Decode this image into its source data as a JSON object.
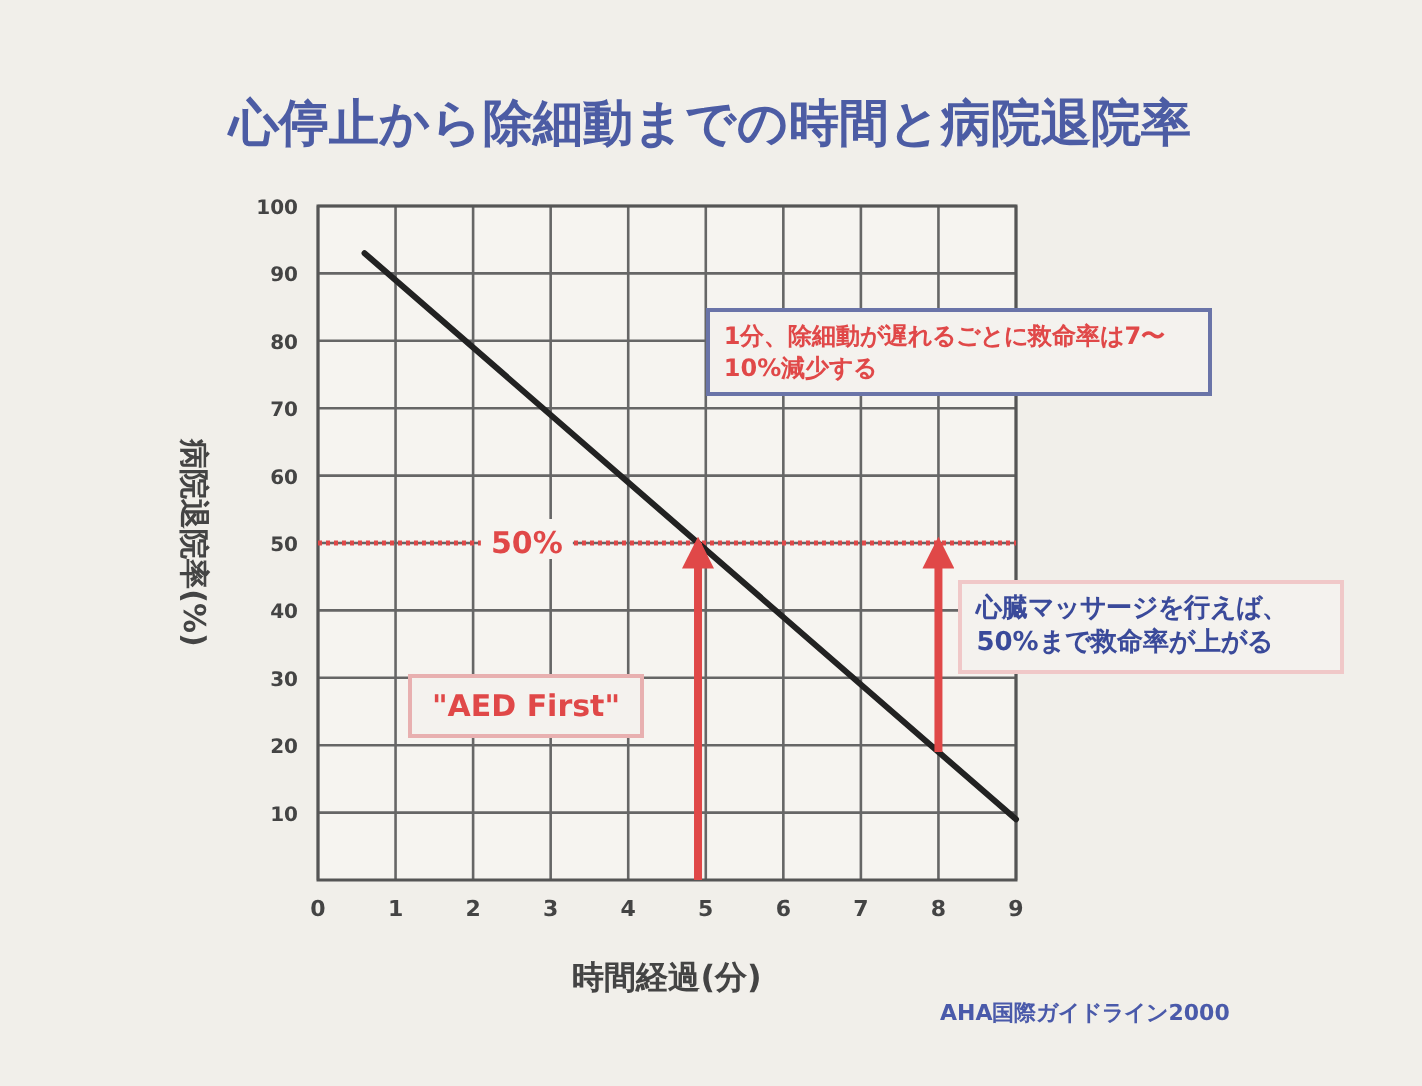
{
  "chart_data": {
    "type": "line",
    "title": "心停止から除細動までの時間と病院退院率",
    "xlabel": "時間経過(分)",
    "ylabel": "病院退院率(%)",
    "series": [
      {
        "color": "#222222",
        "x": [
          0.6,
          9
        ],
        "values": [
          93,
          9
        ]
      },
      {
        "color": "#e04848",
        "x": [
          4.9,
          4.9
        ],
        "values": [
          0,
          50
        ]
      },
      {
        "color": "#e04848",
        "x": [
          8,
          8
        ],
        "values": [
          19,
          50
        ]
      }
    ],
    "xlim": [
      0,
      9
    ],
    "xticks": [
      0,
      1,
      2,
      3,
      4,
      5,
      6,
      7,
      8,
      9
    ],
    "ylim": [
      0,
      100
    ],
    "yticks": [
      10,
      20,
      30,
      40,
      50,
      60,
      70,
      80,
      90,
      100
    ],
    "grid": true,
    "marker": "none",
    "line_style": "solid",
    "ref_lines": [
      {
        "axis": "y",
        "value": 50,
        "label": "50%",
        "color": "#e04848",
        "line_style": "dotted"
      }
    ],
    "annotations": [
      "\"AED First\"",
      "心臓マッサージを行えば、50%まで救命率が上がる",
      "1分、除細動が遅れるごとに救命率は7〜10%減少する",
      "AHA国際ガイドライン2000"
    ]
  }
}
